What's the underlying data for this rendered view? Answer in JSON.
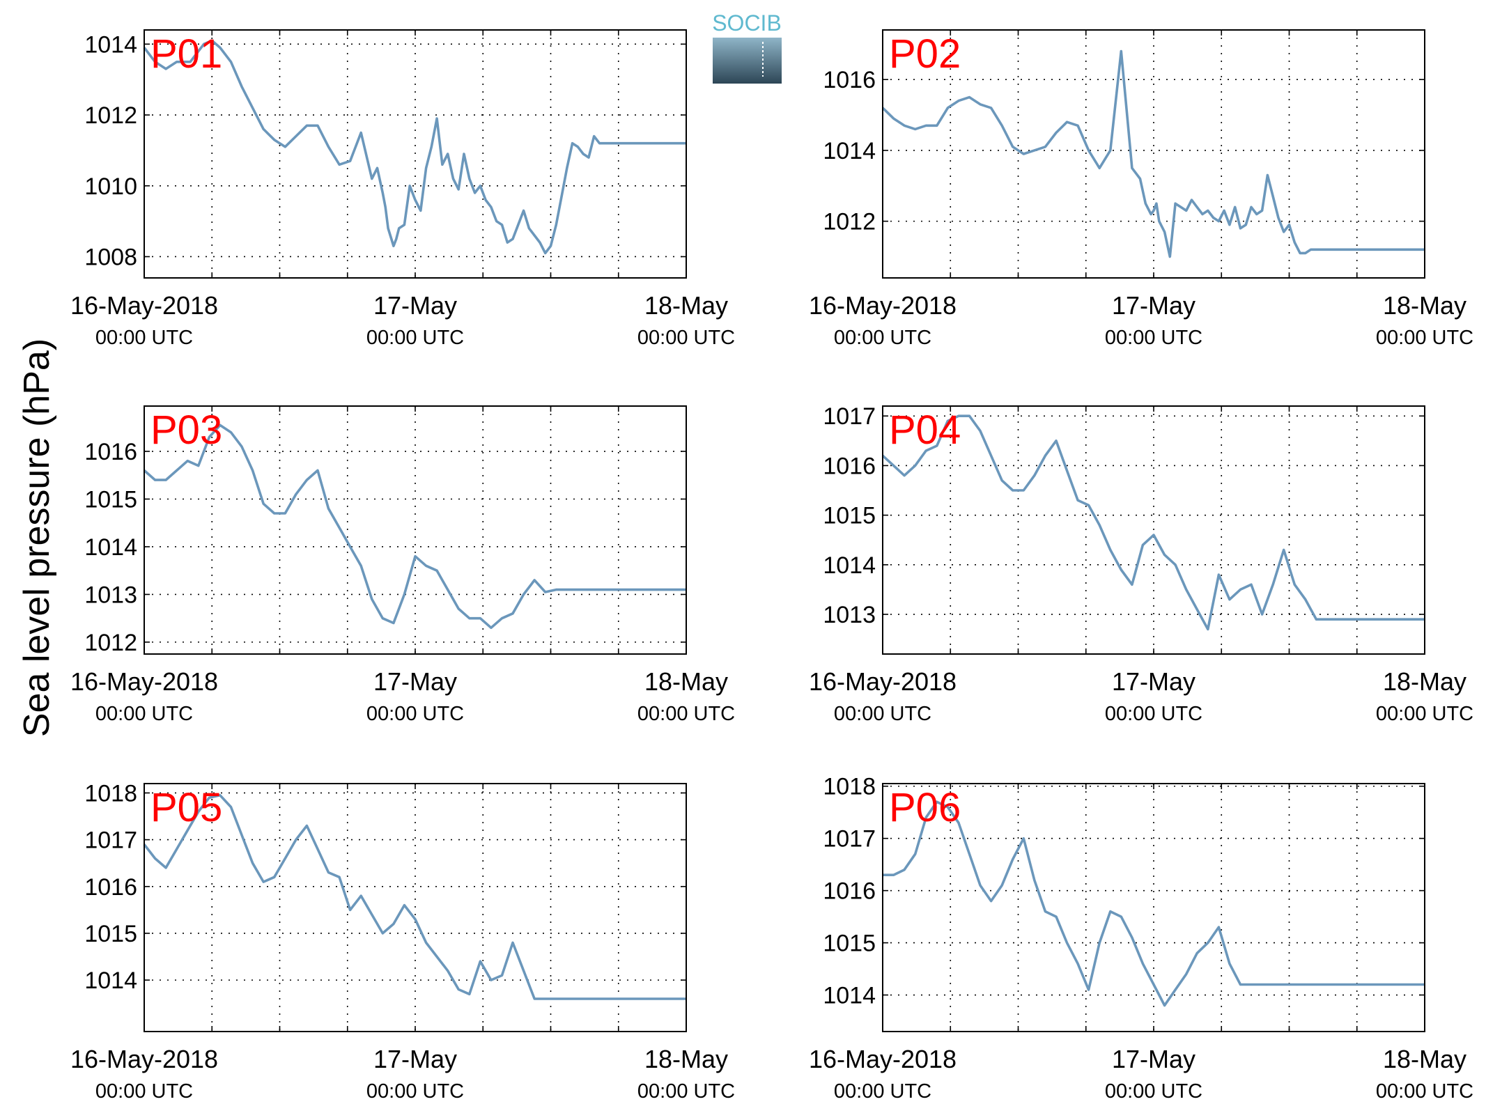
{
  "figure": {
    "ylabel": "Sea level pressure (hPa)",
    "logo_text": "SOCIB",
    "line_color": "#6b97bb",
    "station_label_color": "#ff0000"
  },
  "chart_data": [
    {
      "type": "line",
      "station": "P01",
      "x_ticks": [
        {
          "v": 0,
          "top": "16-May-2018",
          "bottom": "00:00 UTC"
        },
        {
          "v": 1,
          "top": "17-May",
          "bottom": "00:00 UTC"
        },
        {
          "v": 2,
          "top": "18-May",
          "bottom": "00:00 UTC"
        }
      ],
      "xlim": [
        0,
        2
      ],
      "ylim": [
        1007.4,
        1014.4
      ],
      "y_ticks": [
        1008,
        1010,
        1012,
        1014
      ],
      "grid": true,
      "series": [
        {
          "x": [
            0,
            0.04,
            0.08,
            0.12,
            0.17,
            0.2,
            0.22,
            0.25,
            0.28,
            0.32,
            0.36,
            0.4,
            0.44,
            0.48,
            0.52,
            0.56,
            0.6,
            0.64,
            0.68,
            0.72,
            0.76,
            0.8,
            0.84,
            0.86,
            0.88,
            0.89,
            0.9,
            0.92,
            0.93,
            0.94,
            0.96,
            0.98,
            1,
            1.02,
            1.04,
            1.06,
            1.08,
            1.1,
            1.12,
            1.14,
            1.16,
            1.17,
            1.18,
            1.2,
            1.22,
            1.24,
            1.26,
            1.28,
            1.3,
            1.32,
            1.34,
            1.36,
            1.38,
            1.4,
            1.42,
            1.44,
            1.46,
            1.48,
            1.5,
            1.52,
            1.54,
            1.56,
            1.58,
            1.6,
            1.62,
            1.64,
            1.66,
            1.68,
            1.7,
            1.72,
            1.74,
            1.76,
            1.78,
            1.8,
            1.82,
            1.84,
            1.86,
            1.88,
            1.9,
            1.92,
            1.94,
            1.96,
            1.98,
            2
          ],
          "y": [
            1013.9,
            1013.5,
            1013.3,
            1013.5,
            1013.5,
            1013.8,
            1014,
            1014.1,
            1013.9,
            1013.5,
            1012.8,
            1012.2,
            1011.6,
            1011.3,
            1011.1,
            1011.4,
            1011.7,
            1011.7,
            1011.1,
            1010.6,
            1010.7,
            1011.5,
            1010.2,
            1010.5,
            1009.8,
            1009.4,
            1008.8,
            1008.3,
            1008.5,
            1008.8,
            1008.9,
            1010,
            1009.6,
            1009.3,
            1010.5,
            1011.1,
            1011.9,
            1010.6,
            1010.9,
            1010.2,
            1009.9,
            1010.4,
            1010.9,
            1010.2,
            1009.8,
            1010,
            1009.6,
            1009.4,
            1009,
            1008.9,
            1008.4,
            1008.5,
            1008.9,
            1009.3,
            1008.8,
            1008.6,
            1008.4,
            1008.1,
            1008.3,
            1008.9,
            1009.7,
            1010.5,
            1011.2,
            1011.1,
            1010.9,
            1010.8,
            1011.4,
            1011.2,
            1011.2,
            1011.2,
            1011.2,
            1011.2,
            1011.2,
            1011.2,
            1011.2,
            1011.2,
            1011.2,
            1011.2,
            1011.2,
            1011.2,
            1011.2,
            1011.2,
            1011.2,
            1011.2
          ]
        }
      ]
    },
    {
      "type": "line",
      "station": "P02",
      "x_ticks": [
        {
          "v": 0,
          "top": "16-May-2018",
          "bottom": "00:00 UTC"
        },
        {
          "v": 1,
          "top": "17-May",
          "bottom": "00:00 UTC"
        },
        {
          "v": 2,
          "top": "18-May",
          "bottom": "00:00 UTC"
        }
      ],
      "xlim": [
        0,
        2
      ],
      "ylim": [
        1010.4,
        1017.4
      ],
      "y_ticks": [
        1012,
        1014,
        1016
      ],
      "grid": true,
      "series": [
        {
          "x": [
            0,
            0.04,
            0.08,
            0.12,
            0.16,
            0.2,
            0.24,
            0.28,
            0.32,
            0.36,
            0.4,
            0.44,
            0.48,
            0.52,
            0.56,
            0.6,
            0.64,
            0.68,
            0.72,
            0.76,
            0.8,
            0.84,
            0.88,
            0.92,
            0.95,
            0.97,
            0.99,
            1,
            1.01,
            1.02,
            1.04,
            1.06,
            1.08,
            1.1,
            1.12,
            1.14,
            1.16,
            1.18,
            1.2,
            1.22,
            1.24,
            1.26,
            1.28,
            1.3,
            1.32,
            1.34,
            1.36,
            1.38,
            1.4,
            1.42,
            1.44,
            1.46,
            1.48,
            1.5,
            1.52,
            1.54,
            1.56,
            1.58,
            1.6,
            1.62,
            1.64,
            1.66,
            1.68,
            1.7,
            1.72,
            1.74,
            1.76,
            1.78,
            1.8,
            1.82,
            1.84,
            1.86,
            1.88,
            1.9,
            1.92,
            1.94,
            1.96,
            1.98,
            2
          ],
          "y": [
            1015.2,
            1014.9,
            1014.7,
            1014.6,
            1014.7,
            1014.7,
            1015.2,
            1015.4,
            1015.5,
            1015.3,
            1015.2,
            1014.7,
            1014.1,
            1013.9,
            1014,
            1014.1,
            1014.5,
            1014.8,
            1014.7,
            1014,
            1013.5,
            1014,
            1016.8,
            1013.5,
            1013.2,
            1012.5,
            1012.2,
            1012.3,
            1012.5,
            1012,
            1011.7,
            1011,
            1012.5,
            1012.4,
            1012.3,
            1012.6,
            1012.4,
            1012.2,
            1012.3,
            1012.1,
            1012,
            1012.3,
            1011.9,
            1012.4,
            1011.8,
            1011.9,
            1012.4,
            1012.2,
            1012.3,
            1013.3,
            1012.7,
            1012.1,
            1011.7,
            1011.9,
            1011.4,
            1011.1,
            1011.1,
            1011.2,
            1011.2,
            1011.2,
            1011.2,
            1011.2,
            1011.2,
            1011.2,
            1011.2,
            1011.2,
            1011.2,
            1011.2,
            1011.2,
            1011.2,
            1011.2,
            1011.2,
            1011.2,
            1011.2,
            1011.2,
            1011.2,
            1011.2,
            1011.2,
            1011.2
          ]
        }
      ]
    },
    {
      "type": "line",
      "station": "P03",
      "x_ticks": [
        {
          "v": 0,
          "top": "16-May-2018",
          "bottom": "00:00 UTC"
        },
        {
          "v": 1,
          "top": "17-May",
          "bottom": "00:00 UTC"
        },
        {
          "v": 2,
          "top": "18-May",
          "bottom": "00:00 UTC"
        }
      ],
      "xlim": [
        0,
        2
      ],
      "ylim": [
        1011.75,
        1016.95
      ],
      "y_ticks": [
        1012,
        1013,
        1014,
        1015,
        1016
      ],
      "grid": true,
      "series": [
        {
          "x": [
            0,
            0.04,
            0.08,
            0.12,
            0.16,
            0.2,
            0.24,
            0.28,
            0.32,
            0.36,
            0.4,
            0.44,
            0.48,
            0.52,
            0.56,
            0.6,
            0.64,
            0.68,
            0.72,
            0.76,
            0.8,
            0.84,
            0.88,
            0.92,
            0.96,
            1,
            1.04,
            1.08,
            1.12,
            1.16,
            1.2,
            1.24,
            1.28,
            1.32,
            1.36,
            1.4,
            1.44,
            1.48,
            1.52,
            1.56,
            1.6,
            1.64,
            1.68,
            1.72,
            1.76,
            1.8,
            1.84,
            1.88,
            1.92,
            1.96,
            2
          ],
          "y": [
            1015.6,
            1015.4,
            1015.4,
            1015.6,
            1015.8,
            1015.7,
            1016.3,
            1016.55,
            1016.4,
            1016.1,
            1015.6,
            1014.9,
            1014.7,
            1014.7,
            1015.1,
            1015.4,
            1015.6,
            1014.8,
            1014.4,
            1014,
            1013.6,
            1012.9,
            1012.5,
            1012.4,
            1013,
            1013.8,
            1013.6,
            1013.5,
            1013.1,
            1012.7,
            1012.5,
            1012.5,
            1012.3,
            1012.5,
            1012.6,
            1013,
            1013.3,
            1013.05,
            1013.1,
            1013.1,
            1013.1,
            1013.1,
            1013.1,
            1013.1,
            1013.1,
            1013.1,
            1013.1,
            1013.1,
            1013.1,
            1013.1,
            1013.1
          ]
        }
      ]
    },
    {
      "type": "line",
      "station": "P04",
      "x_ticks": [
        {
          "v": 0,
          "top": "16-May-2018",
          "bottom": "00:00 UTC"
        },
        {
          "v": 1,
          "top": "17-May",
          "bottom": "00:00 UTC"
        },
        {
          "v": 2,
          "top": "18-May",
          "bottom": "00:00 UTC"
        }
      ],
      "xlim": [
        0,
        2
      ],
      "ylim": [
        1012.2,
        1017.2
      ],
      "y_ticks": [
        1013,
        1014,
        1015,
        1016,
        1017
      ],
      "grid": true,
      "series": [
        {
          "x": [
            0,
            0.04,
            0.08,
            0.12,
            0.16,
            0.2,
            0.24,
            0.28,
            0.32,
            0.36,
            0.4,
            0.44,
            0.48,
            0.52,
            0.56,
            0.6,
            0.64,
            0.68,
            0.72,
            0.76,
            0.8,
            0.84,
            0.88,
            0.92,
            0.96,
            1,
            1.04,
            1.08,
            1.12,
            1.16,
            1.2,
            1.24,
            1.28,
            1.32,
            1.36,
            1.4,
            1.44,
            1.48,
            1.52,
            1.56,
            1.6,
            1.64,
            1.68,
            1.72,
            1.76,
            1.8,
            1.84,
            1.88,
            1.92,
            1.96,
            2
          ],
          "y": [
            1016.2,
            1016,
            1015.8,
            1016,
            1016.3,
            1016.4,
            1016.9,
            1017,
            1017,
            1016.7,
            1016.2,
            1015.7,
            1015.5,
            1015.5,
            1015.8,
            1016.2,
            1016.5,
            1015.9,
            1015.3,
            1015.2,
            1014.8,
            1014.3,
            1013.9,
            1013.6,
            1014.4,
            1014.6,
            1014.2,
            1014,
            1013.5,
            1013.1,
            1012.7,
            1013.8,
            1013.3,
            1013.5,
            1013.6,
            1013,
            1013.6,
            1014.3,
            1013.6,
            1013.3,
            1012.9,
            1012.9,
            1012.9,
            1012.9,
            1012.9,
            1012.9,
            1012.9,
            1012.9,
            1012.9,
            1012.9,
            1012.9
          ]
        }
      ]
    },
    {
      "type": "line",
      "station": "P05",
      "x_ticks": [
        {
          "v": 0,
          "top": "16-May-2018",
          "bottom": "00:00 UTC"
        },
        {
          "v": 1,
          "top": "17-May",
          "bottom": "00:00 UTC"
        },
        {
          "v": 2,
          "top": "18-May",
          "bottom": "00:00 UTC"
        }
      ],
      "xlim": [
        0,
        2
      ],
      "ylim": [
        1012.9,
        1018.2
      ],
      "y_ticks": [
        1014,
        1015,
        1016,
        1017,
        1018
      ],
      "grid": true,
      "series": [
        {
          "x": [
            0,
            0.04,
            0.08,
            0.12,
            0.16,
            0.2,
            0.24,
            0.28,
            0.32,
            0.36,
            0.4,
            0.44,
            0.48,
            0.52,
            0.56,
            0.6,
            0.64,
            0.68,
            0.72,
            0.76,
            0.8,
            0.84,
            0.88,
            0.92,
            0.96,
            1,
            1.04,
            1.08,
            1.12,
            1.16,
            1.2,
            1.24,
            1.28,
            1.32,
            1.36,
            1.4,
            1.44,
            1.48,
            1.52,
            1.56,
            1.6,
            1.64,
            1.68,
            1.72,
            1.76,
            1.8,
            1.84,
            1.88,
            1.92,
            1.96,
            2
          ],
          "y": [
            1016.9,
            1016.6,
            1016.4,
            1016.8,
            1017.2,
            1017.6,
            1017.9,
            1017.95,
            1017.7,
            1017.1,
            1016.5,
            1016.1,
            1016.2,
            1016.6,
            1017,
            1017.3,
            1016.8,
            1016.3,
            1016.2,
            1015.5,
            1015.8,
            1015.4,
            1015,
            1015.2,
            1015.6,
            1015.3,
            1014.8,
            1014.5,
            1014.2,
            1013.8,
            1013.7,
            1014.4,
            1014,
            1014.1,
            1014.8,
            1014.2,
            1013.6,
            1013.6,
            1013.6,
            1013.6,
            1013.6,
            1013.6,
            1013.6,
            1013.6,
            1013.6,
            1013.6,
            1013.6,
            1013.6,
            1013.6,
            1013.6,
            1013.6
          ]
        }
      ]
    },
    {
      "type": "line",
      "station": "P06",
      "x_ticks": [
        {
          "v": 0,
          "top": "16-May-2018",
          "bottom": "00:00 UTC"
        },
        {
          "v": 1,
          "top": "17-May",
          "bottom": "00:00 UTC"
        },
        {
          "v": 2,
          "top": "18-May",
          "bottom": "00:00 UTC"
        }
      ],
      "xlim": [
        0,
        2
      ],
      "ylim": [
        1013.3,
        1018.05
      ],
      "y_ticks": [
        1014,
        1015,
        1016,
        1017,
        1018
      ],
      "grid": true,
      "series": [
        {
          "x": [
            0,
            0.04,
            0.08,
            0.12,
            0.16,
            0.2,
            0.24,
            0.28,
            0.32,
            0.36,
            0.4,
            0.44,
            0.48,
            0.52,
            0.56,
            0.6,
            0.64,
            0.68,
            0.72,
            0.76,
            0.8,
            0.84,
            0.88,
            0.92,
            0.96,
            1,
            1.04,
            1.08,
            1.12,
            1.16,
            1.2,
            1.24,
            1.28,
            1.32,
            1.36,
            1.4,
            1.44,
            1.48,
            1.52,
            1.56,
            1.6,
            1.64,
            1.68,
            1.72,
            1.76,
            1.8,
            1.84,
            1.88,
            1.92,
            1.96,
            2
          ],
          "y": [
            1016.3,
            1016.3,
            1016.4,
            1016.7,
            1017.4,
            1017.7,
            1017.6,
            1017.3,
            1016.7,
            1016.1,
            1015.8,
            1016.1,
            1016.6,
            1017,
            1016.2,
            1015.6,
            1015.5,
            1015.0,
            1014.6,
            1014.1,
            1015,
            1015.6,
            1015.5,
            1015.1,
            1014.6,
            1014.2,
            1013.8,
            1014.1,
            1014.4,
            1014.8,
            1015,
            1015.3,
            1014.6,
            1014.2,
            1014.2,
            1014.2,
            1014.2,
            1014.2,
            1014.2,
            1014.2,
            1014.2,
            1014.2,
            1014.2,
            1014.2,
            1014.2,
            1014.2,
            1014.2,
            1014.2,
            1014.2,
            1014.2,
            1014.2
          ]
        }
      ]
    }
  ]
}
